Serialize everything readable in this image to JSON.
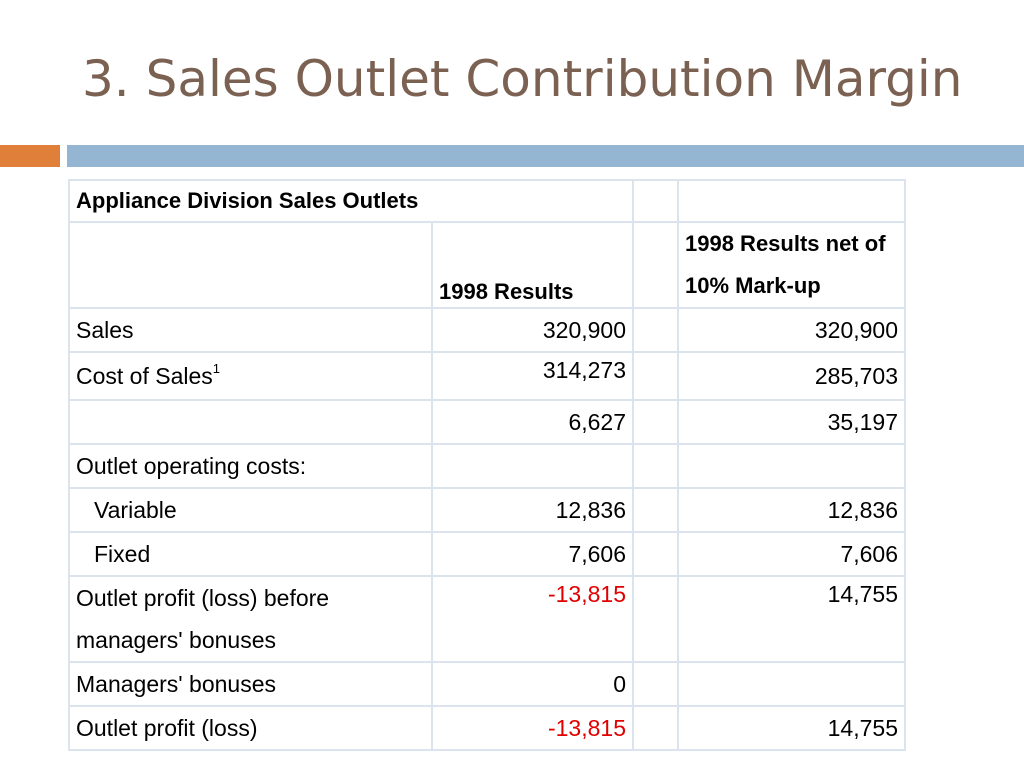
{
  "slide": {
    "title": "3. Sales Outlet Contribution Margin"
  },
  "colors": {
    "title": "#7b6152",
    "accent_orange": "#e07f3a",
    "accent_blue": "#94b6d2",
    "negative": "#e00000"
  },
  "table": {
    "title": "Appliance Division Sales Outlets",
    "col1_header": "1998 Results",
    "col2_header": "1998 Results net of 10% Mark-up",
    "rows": [
      {
        "label": "Sales",
        "col1": "320,900",
        "col2": "320,900"
      },
      {
        "label": "Cost of Sales",
        "footnote": "1",
        "col1": "314,273",
        "col2": "285,703"
      },
      {
        "label": "",
        "col1": "6,627",
        "col2": "35,197"
      },
      {
        "label": "Outlet operating costs:",
        "col1": "",
        "col2": ""
      },
      {
        "label": "Variable",
        "col1": "12,836",
        "col2": "12,836"
      },
      {
        "label": "Fixed",
        "col1": "7,606",
        "col2": "7,606"
      },
      {
        "label": "Outlet profit (loss) before managers' bonuses",
        "col1": "-13,815",
        "col2": "14,755"
      },
      {
        "label": "Managers' bonuses",
        "col1": "0",
        "col2": ""
      },
      {
        "label": "Outlet profit (loss)",
        "col1": "-13,815",
        "col2": "14,755"
      }
    ]
  }
}
